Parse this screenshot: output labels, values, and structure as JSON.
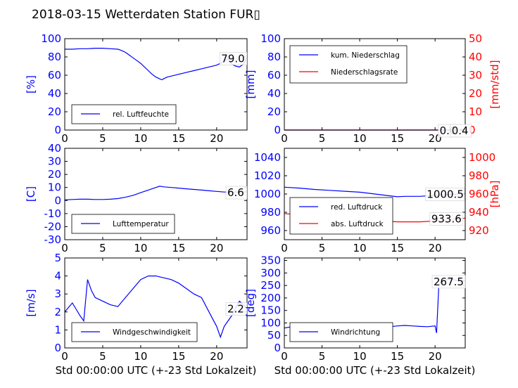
{
  "page_title": "2018-03-15 Wetterdaten Station FUR▯",
  "colors": {
    "primary": "#0000ff",
    "secondary": "#ff0000",
    "axis": "#000000"
  },
  "chart_data": [
    {
      "id": "humidity",
      "type": "line",
      "xlabel": "",
      "ylabel": "[%]",
      "xlim": [
        0,
        24
      ],
      "ylim": [
        0,
        100
      ],
      "xticks": [
        0,
        5,
        10,
        15,
        20
      ],
      "yticks": [
        0,
        20,
        40,
        60,
        80,
        100
      ],
      "grid": false,
      "legend": {
        "placement": "lower-left",
        "entries": [
          "rel. Luftfeuchte"
        ]
      },
      "annotations": [
        "79.0"
      ],
      "series": [
        {
          "name": "rel. Luftfeuchte",
          "color": "#0000ff",
          "x": [
            0,
            1,
            2,
            3,
            4,
            5,
            6,
            7,
            7.5,
            8,
            8.5,
            9,
            9.5,
            10,
            10.5,
            11,
            11.5,
            12,
            12.5,
            12.8,
            13,
            13.5,
            14,
            15,
            16,
            17,
            18,
            19,
            20,
            20.5,
            21,
            21.5,
            22,
            22.5,
            23,
            23.5,
            24
          ],
          "y": [
            88.5,
            88.5,
            89,
            89,
            89.5,
            89.5,
            89,
            88.5,
            87,
            85,
            82,
            79,
            76,
            73,
            69,
            65,
            61,
            58,
            56,
            55,
            56,
            58,
            59,
            61,
            63,
            65,
            67,
            69,
            71,
            73,
            75,
            78,
            72,
            70,
            69,
            72,
            79
          ]
        }
      ]
    },
    {
      "id": "precipitation",
      "type": "line",
      "xlabel": "",
      "ylabel": "[mm]",
      "ylabel_right": "[mm/std]",
      "xlim": [
        0,
        24
      ],
      "ylim": [
        0,
        100
      ],
      "ylim_right": [
        0,
        50
      ],
      "xticks": [
        0,
        5,
        10,
        15,
        20
      ],
      "yticks": [
        0,
        20,
        40,
        60,
        80,
        100
      ],
      "yticks_right": [
        0,
        10,
        20,
        30,
        40,
        50
      ],
      "grid": false,
      "legend": {
        "placement": "upper-left",
        "entries": [
          "kum. Niederschlag",
          "Niederschlagsrate"
        ]
      },
      "annotations": [
        "0.0",
        "0.4"
      ],
      "series": [
        {
          "name": "kum. Niederschlag",
          "color": "#0000ff",
          "axis": "left",
          "x": [
            0,
            20,
            21,
            22,
            23,
            24
          ],
          "y": [
            0,
            0,
            0,
            0,
            0,
            0
          ]
        },
        {
          "name": "Niederschlagsrate",
          "color": "#ff0000",
          "axis": "right",
          "x": [
            0,
            20,
            21,
            22,
            23,
            24
          ],
          "y": [
            0,
            0,
            0,
            0.1,
            0.2,
            0.4
          ]
        }
      ]
    },
    {
      "id": "temperature",
      "type": "line",
      "xlabel": "",
      "ylabel": "[C]",
      "xlim": [
        0,
        24
      ],
      "ylim": [
        -30,
        40
      ],
      "xticks": [
        0,
        5,
        10,
        15,
        20
      ],
      "yticks": [
        -30,
        -20,
        -10,
        0,
        10,
        20,
        30,
        40
      ],
      "grid": false,
      "legend": {
        "placement": "lower-left",
        "entries": [
          "Lufttemperatur"
        ]
      },
      "annotations": [
        "6.6"
      ],
      "series": [
        {
          "name": "Lufttemperatur",
          "color": "#0000ff",
          "x": [
            0,
            1,
            2,
            3,
            4,
            5,
            6,
            7,
            8,
            9,
            10,
            11,
            12,
            12.5,
            13,
            14,
            15,
            16,
            17,
            18,
            19,
            20,
            21,
            22,
            23,
            24
          ],
          "y": [
            0.5,
            0.8,
            1,
            1,
            0.8,
            0.8,
            1,
            1.5,
            2.5,
            4,
            6,
            8,
            10,
            11,
            10.5,
            10,
            9.5,
            9,
            8.5,
            8,
            7.5,
            7,
            6.5,
            6.5,
            6.6,
            6.6
          ]
        }
      ]
    },
    {
      "id": "pressure",
      "type": "line",
      "xlabel": "",
      "ylabel": "",
      "ylabel_right": "[hPa]",
      "xlim": [
        0,
        24
      ],
      "ylim": [
        950,
        1050
      ],
      "ylim_right": [
        910,
        1010
      ],
      "xticks": [
        0,
        5,
        10,
        15,
        20
      ],
      "yticks": [
        960,
        980,
        1000,
        1020,
        1040
      ],
      "yticks_right": [
        920,
        940,
        960,
        980,
        1000
      ],
      "grid": false,
      "legend": {
        "placement": "lower-left",
        "entries": [
          "red. Luftdruck",
          "abs. Luftdruck"
        ]
      },
      "annotations": [
        "1000.5",
        "933.6"
      ],
      "series": [
        {
          "name": "red. Luftdruck",
          "color": "#0000ff",
          "axis": "left",
          "x": [
            0,
            2,
            4,
            6,
            8,
            10,
            12,
            14,
            15,
            16,
            18,
            20,
            22,
            24
          ],
          "y": [
            1007.5,
            1006.5,
            1005,
            1004,
            1003,
            1002,
            1000,
            998,
            997,
            997.5,
            997.5,
            998.5,
            999.5,
            1000.5
          ]
        },
        {
          "name": "abs. Luftdruck",
          "color": "#ff0000",
          "axis": "right",
          "x": [
            0,
            2,
            4,
            6,
            8,
            10,
            12,
            14,
            15,
            16,
            18,
            20,
            22,
            24
          ],
          "y": [
            938.5,
            937.5,
            936.5,
            935.5,
            934.5,
            933.5,
            931.5,
            930,
            929.5,
            929.5,
            929.5,
            930.5,
            932,
            933.6
          ]
        }
      ]
    },
    {
      "id": "wind-speed",
      "type": "line",
      "xlabel": "Std 00:00:00 UTC (+-23 Std Lokalzeit)",
      "ylabel": "[m/s]",
      "xlim": [
        0,
        24
      ],
      "ylim": [
        0,
        5
      ],
      "xticks": [
        0,
        5,
        10,
        15,
        20
      ],
      "yticks": [
        0,
        1,
        2,
        3,
        4,
        5
      ],
      "grid": false,
      "legend": {
        "placement": "lower-left",
        "entries": [
          "Windgeschwindigkeit"
        ]
      },
      "annotations": [
        "2.2"
      ],
      "series": [
        {
          "name": "Windgeschwindigkeit",
          "color": "#0000ff",
          "x": [
            0,
            1,
            2,
            2.5,
            3,
            3.5,
            4,
            5,
            6,
            7,
            8,
            9,
            10,
            11,
            12,
            13,
            14,
            15,
            16,
            17,
            18,
            19,
            20,
            20.5,
            21,
            22,
            23,
            24
          ],
          "y": [
            2,
            2.5,
            1.8,
            1.5,
            3.8,
            3.2,
            2.8,
            2.6,
            2.4,
            2.3,
            2.8,
            3.3,
            3.8,
            4.0,
            4.0,
            3.9,
            3.8,
            3.6,
            3.3,
            3.0,
            2.8,
            2.0,
            1.2,
            0.6,
            1.2,
            1.8,
            2.6,
            2.2
          ]
        }
      ]
    },
    {
      "id": "wind-direction",
      "type": "line",
      "xlabel": "Std 00:00:00 UTC (+-23 Std Lokalzeit)",
      "ylabel": "[deg]",
      "xlim": [
        0,
        24
      ],
      "ylim": [
        0,
        360
      ],
      "xticks": [
        0,
        5,
        10,
        15,
        20
      ],
      "yticks": [
        0,
        50,
        100,
        150,
        200,
        250,
        300,
        350
      ],
      "grid": false,
      "legend": {
        "placement": "lower-left",
        "entries": [
          "Windrichtung"
        ]
      },
      "annotations": [
        "267.5"
      ],
      "series": [
        {
          "name": "Windrichtung",
          "color": "#0000ff",
          "x": [
            0,
            1,
            2,
            3,
            4,
            5,
            6,
            7,
            8,
            9,
            10,
            11,
            12,
            13,
            14,
            15,
            16,
            17,
            18,
            19,
            20,
            20.2,
            20.5,
            21,
            22,
            23,
            24
          ],
          "y": [
            80,
            85,
            80,
            82,
            85,
            95,
            90,
            88,
            85,
            80,
            78,
            75,
            78,
            82,
            85,
            88,
            90,
            88,
            86,
            85,
            88,
            60,
            250,
            270,
            275,
            270,
            267.5
          ]
        }
      ]
    }
  ]
}
